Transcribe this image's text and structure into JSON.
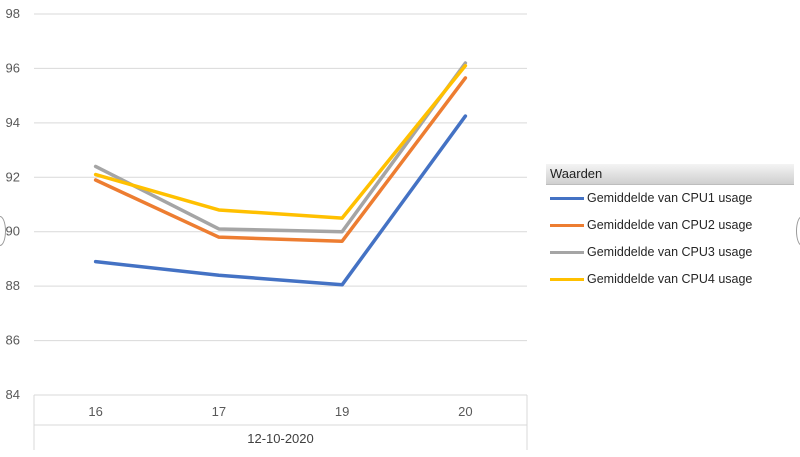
{
  "chart_data": {
    "type": "line",
    "title": "",
    "xlabel": "",
    "ylabel": "",
    "categories": [
      "16",
      "17",
      "19",
      "20"
    ],
    "group_label": "12-10-2020",
    "ylim": [
      84,
      98
    ],
    "yticks": [
      "84",
      "86",
      "88",
      "90",
      "92",
      "94",
      "96",
      "98"
    ],
    "grid": true,
    "legend_title": "Waarden",
    "legend_position": "right",
    "series": [
      {
        "name": "Gemiddelde van CPU1 usage",
        "color": "#4472c4",
        "values": [
          88.9,
          88.4,
          88.05,
          94.25
        ]
      },
      {
        "name": "Gemiddelde van CPU2 usage",
        "color": "#ed7d31",
        "values": [
          91.9,
          89.8,
          89.65,
          95.65
        ]
      },
      {
        "name": "Gemiddelde van CPU3 usage",
        "color": "#a5a5a5",
        "values": [
          92.4,
          90.1,
          90.0,
          96.2
        ]
      },
      {
        "name": "Gemiddelde van CPU4 usage",
        "color": "#ffc000",
        "values": [
          92.1,
          90.8,
          90.5,
          96.1
        ]
      }
    ]
  }
}
